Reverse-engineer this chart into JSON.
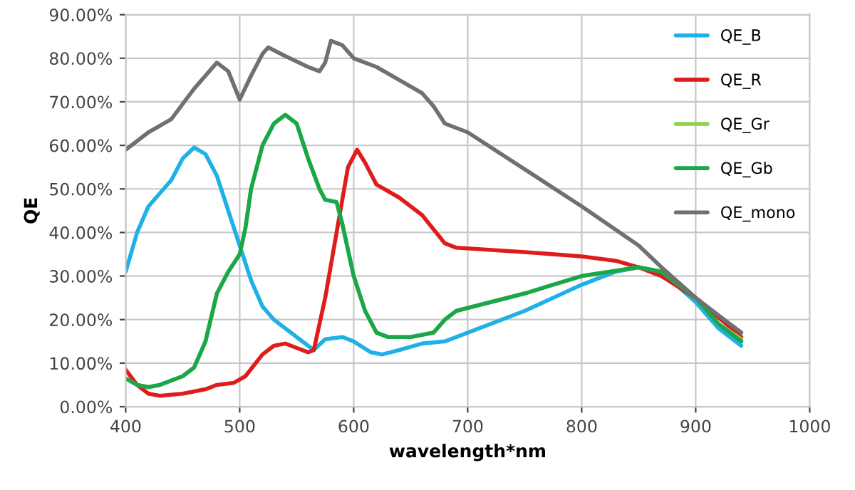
{
  "chart_data": {
    "type": "line",
    "xlabel": "wavelength*nm",
    "ylabel": "QE",
    "xlim": [
      400,
      1000
    ],
    "xticks": [
      400,
      500,
      600,
      700,
      800,
      900,
      1000
    ],
    "ylim": [
      0,
      90
    ],
    "yticks": [
      {
        "value": 0,
        "label": "0.00%"
      },
      {
        "value": 10,
        "label": "10.00%"
      },
      {
        "value": 20,
        "label": "20.00%"
      },
      {
        "value": 30,
        "label": "30.00%"
      },
      {
        "value": 40,
        "label": "40.00%"
      },
      {
        "value": 50,
        "label": "50.00%"
      },
      {
        "value": 60,
        "label": "60.00%"
      },
      {
        "value": 70,
        "label": "70.00%"
      },
      {
        "value": 80,
        "label": "80.00%"
      },
      {
        "value": 90,
        "label": "90.00%"
      }
    ],
    "grid": true,
    "legend": "top right",
    "marker": "none",
    "line_style": "solid",
    "series": [
      {
        "name": "QE_B",
        "color": "#1fb0e6",
        "x": [
          400,
          410,
          420,
          440,
          450,
          460,
          470,
          480,
          490,
          500,
          510,
          520,
          530,
          550,
          565,
          575,
          590,
          600,
          615,
          625,
          640,
          660,
          680,
          700,
          750,
          800,
          830,
          850,
          870,
          900,
          920,
          940
        ],
        "values": [
          31,
          40,
          46,
          52,
          57,
          59.5,
          58,
          53,
          45,
          37,
          29,
          23,
          20,
          16,
          13,
          15.5,
          16,
          15,
          12.5,
          12,
          13,
          14.5,
          15,
          17,
          22,
          28,
          31,
          32,
          31,
          24,
          18,
          14
        ]
      },
      {
        "name": "QE_R",
        "color": "#e01b1b",
        "x": [
          400,
          410,
          420,
          430,
          450,
          470,
          480,
          495,
          505,
          520,
          530,
          540,
          550,
          560,
          565,
          575,
          585,
          595,
          603,
          610,
          620,
          640,
          660,
          680,
          690,
          750,
          800,
          830,
          850,
          870,
          900,
          940
        ],
        "values": [
          8.5,
          5,
          3,
          2.5,
          3,
          4,
          5,
          5.5,
          7,
          12,
          14,
          14.5,
          13.5,
          12.5,
          13,
          25,
          40,
          55,
          59,
          56,
          51,
          48,
          44,
          37.5,
          36.5,
          35.5,
          34.5,
          33.5,
          32,
          30,
          25,
          16
        ]
      },
      {
        "name": "QE_Gr",
        "color": "#92d050",
        "x": [
          400,
          410,
          420,
          430,
          450,
          460,
          470,
          480,
          490,
          500,
          505,
          510,
          520,
          530,
          540,
          550,
          560,
          570,
          575,
          585,
          590,
          600,
          610,
          620,
          630,
          650,
          670,
          680,
          690,
          750,
          800,
          850,
          870,
          900,
          920,
          940
        ],
        "values": [
          6.5,
          5,
          4.5,
          5,
          7,
          9,
          15,
          26,
          31,
          35,
          41,
          50,
          60,
          65,
          67,
          65,
          57,
          50,
          47.5,
          47,
          42,
          30,
          22,
          17,
          16,
          16,
          17,
          20,
          22,
          26,
          30,
          32,
          31,
          25,
          19,
          15.5
        ]
      },
      {
        "name": "QE_Gb",
        "color": "#1aa64a",
        "x": [
          400,
          410,
          420,
          430,
          450,
          460,
          470,
          480,
          490,
          500,
          505,
          510,
          520,
          530,
          540,
          550,
          560,
          570,
          575,
          585,
          590,
          600,
          610,
          620,
          630,
          650,
          670,
          680,
          690,
          750,
          800,
          850,
          870,
          900,
          920,
          940
        ],
        "values": [
          6.5,
          5,
          4.5,
          5,
          7,
          9,
          15,
          26,
          31,
          35,
          41,
          50,
          60,
          65,
          67,
          65,
          57,
          50,
          47.5,
          47,
          42,
          30,
          22,
          17,
          16,
          16,
          17,
          20,
          22,
          26,
          30,
          32,
          31,
          25,
          19,
          15
        ]
      },
      {
        "name": "QE_mono",
        "color": "#707070",
        "x": [
          400,
          420,
          440,
          460,
          480,
          490,
          500,
          510,
          520,
          525,
          540,
          560,
          570,
          575,
          580,
          590,
          600,
          620,
          640,
          660,
          670,
          680,
          700,
          800,
          850,
          870,
          900,
          940
        ],
        "values": [
          59,
          63,
          66,
          73,
          79,
          77,
          70.5,
          76,
          81,
          82.5,
          80.5,
          78,
          77,
          79,
          84,
          83,
          80,
          78,
          75,
          72,
          69,
          65,
          63,
          46,
          37,
          32,
          25,
          17
        ]
      }
    ]
  }
}
